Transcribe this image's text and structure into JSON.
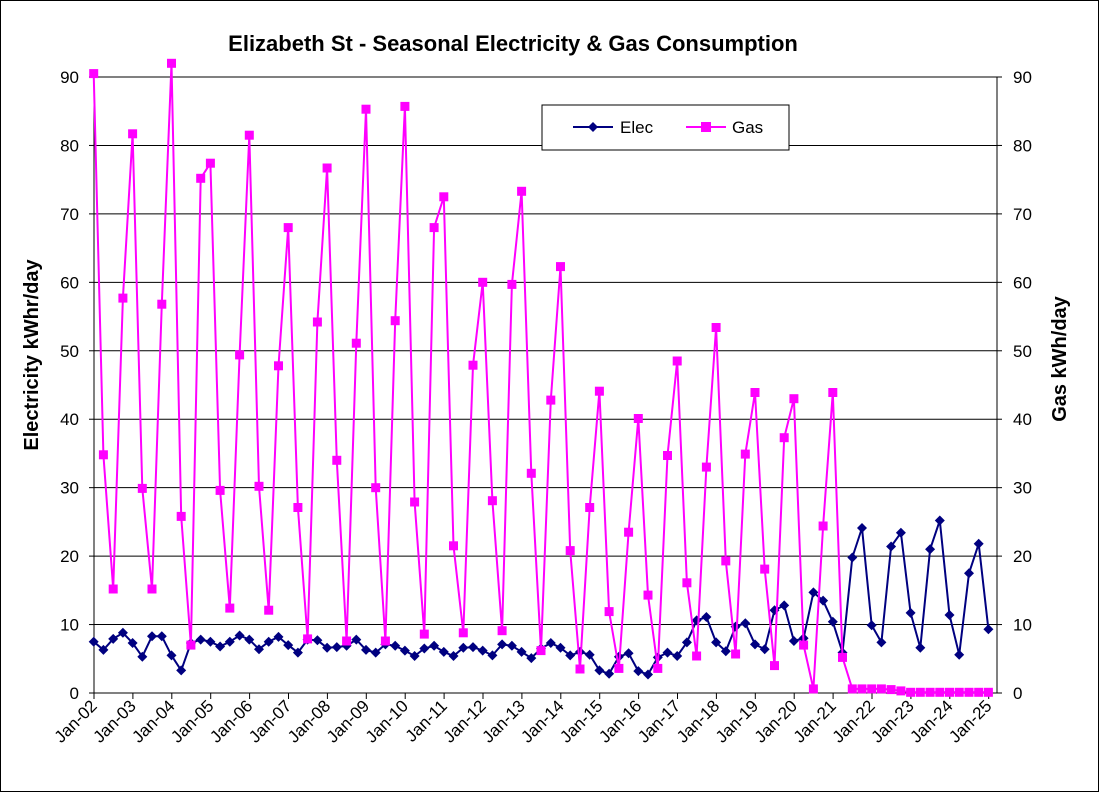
{
  "chart_data": {
    "type": "line",
    "title": "Elizabeth St - Seasonal Electricity & Gas Consumption",
    "ylabel": "Electricity kWhr/day",
    "y2label": "Gas kWh/day",
    "ylim": [
      0,
      90
    ],
    "y2lim": [
      0,
      90
    ],
    "y_ticks": [
      "0",
      "10",
      "20",
      "30",
      "40",
      "50",
      "60",
      "70",
      "80",
      "90"
    ],
    "x_ticks": [
      "Jan-02",
      "Jan-03",
      "Jan-04",
      "Jan-05",
      "Jan-06",
      "Jan-07",
      "Jan-08",
      "Jan-09",
      "Jan-10",
      "Jan-11",
      "Jan-12",
      "Jan-13",
      "Jan-14",
      "Jan-15",
      "Jan-16",
      "Jan-17",
      "Jan-18",
      "Jan-19",
      "Jan-20",
      "Jan-21",
      "Jan-22",
      "Jan-23",
      "Jan-24",
      "Jan-25"
    ],
    "x_start": "Jan-02",
    "x_period_months": 3,
    "grid": "horizontal",
    "legend_position": "top-center",
    "series": [
      {
        "name": "Elec",
        "color": "#000080",
        "marker": "diamond",
        "axis": "left",
        "values": [
          7.5,
          6.3,
          7.9,
          8.8,
          7.3,
          5.3,
          8.3,
          8.3,
          5.5,
          3.3,
          7.3,
          7.8,
          7.5,
          6.8,
          7.5,
          8.4,
          7.8,
          6.4,
          7.5,
          8.2,
          7.0,
          5.9,
          7.8,
          7.7,
          6.6,
          6.7,
          6.9,
          7.8,
          6.3,
          5.9,
          7.1,
          6.9,
          6.2,
          5.4,
          6.5,
          6.9,
          6.0,
          5.4,
          6.6,
          6.7,
          6.2,
          5.5,
          7.1,
          6.9,
          6.0,
          5.1,
          6.5,
          7.3,
          6.6,
          5.5,
          6.0,
          5.6,
          3.3,
          2.8,
          5.3,
          5.8,
          3.2,
          2.7,
          5.2,
          5.9,
          5.4,
          7.4,
          10.6,
          11.1,
          7.4,
          6.1,
          9.7,
          10.2,
          7.1,
          6.4,
          12.1,
          12.8,
          7.6,
          8.0,
          14.7,
          13.5,
          10.4,
          5.9,
          19.8,
          24.1,
          9.9,
          7.4,
          21.4,
          23.4,
          11.7,
          6.6,
          21.0,
          25.2,
          11.4,
          5.6,
          17.5,
          21.8,
          9.3
        ]
      },
      {
        "name": "Gas",
        "color": "#ff00ff",
        "marker": "square",
        "axis": "right",
        "values": [
          90.5,
          34.8,
          15.2,
          57.7,
          81.7,
          29.9,
          15.2,
          56.8,
          92.0,
          25.8,
          7.0,
          75.2,
          77.4,
          29.6,
          12.4,
          49.4,
          81.5,
          30.2,
          12.1,
          47.8,
          68.0,
          27.1,
          7.9,
          54.2,
          76.7,
          34.0,
          7.6,
          51.1,
          85.3,
          30.0,
          7.6,
          54.4,
          85.7,
          27.9,
          8.6,
          68.0,
          72.5,
          21.5,
          8.8,
          47.9,
          60.0,
          28.1,
          9.1,
          59.7,
          73.3,
          32.1,
          6.2,
          42.8,
          62.3,
          20.8,
          3.5,
          27.1,
          44.1,
          11.9,
          3.6,
          23.5,
          40.1,
          14.3,
          3.6,
          34.7,
          48.5,
          16.1,
          5.4,
          33.0,
          53.4,
          19.3,
          5.7,
          34.9,
          43.9,
          18.1,
          4.0,
          37.3,
          43.0,
          7.0,
          0.6,
          24.4,
          43.9,
          5.2,
          0.6,
          0.6,
          0.6,
          0.6,
          0.5,
          0.3,
          0.1,
          0.1,
          0.1,
          0.1,
          0.1,
          0.1,
          0.1,
          0.1,
          0.1
        ]
      }
    ]
  }
}
